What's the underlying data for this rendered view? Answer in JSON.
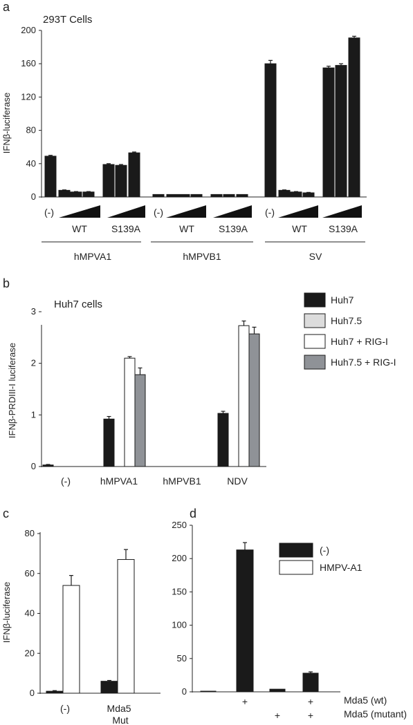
{
  "chart_data": [
    {
      "panel": "a",
      "type": "bar",
      "title": "293T Cells",
      "ylabel": "IFNβ-luciferase",
      "ylim": [
        0,
        200
      ],
      "yticks": [
        "0",
        "40",
        "80",
        "120",
        "160",
        "200"
      ],
      "groups": [
        "hMPVA1",
        "hMPVB1",
        "SV"
      ],
      "sublabels": [
        "(-)",
        "WT",
        "S139A"
      ],
      "values": [
        [
          49,
          8,
          6,
          6,
          39,
          38,
          53
        ],
        [
          3,
          3,
          3,
          3,
          3,
          3,
          3
        ],
        [
          160,
          8,
          6,
          5,
          155,
          158,
          191
        ]
      ],
      "errors": [
        [
          1,
          0.5,
          0.5,
          0.5,
          1,
          1,
          1
        ],
        [
          0,
          0,
          0,
          0,
          0,
          0,
          0
        ],
        [
          4,
          0.5,
          0.5,
          0.5,
          2,
          2,
          2
        ]
      ],
      "bar_color": "#1a1a1a"
    },
    {
      "panel": "b",
      "type": "bar",
      "title": "Huh7 cells",
      "ylabel": "IFNβ-PRDIII-I luciferase",
      "ylim": [
        0,
        3
      ],
      "yticks": [
        "0",
        "1",
        "2",
        "3"
      ],
      "categories": [
        "(-)",
        "hMPVA1",
        "hMPVB1",
        "NDV"
      ],
      "series": [
        {
          "name": "Huh7",
          "color": "#1a1a1a",
          "values": [
            0.03,
            0.92,
            0,
            1.03
          ],
          "errors": [
            0.01,
            0.05,
            0,
            0.04
          ]
        },
        {
          "name": "Huh7.5",
          "color": "#dcdcdc",
          "values": [
            0,
            0,
            0,
            0
          ],
          "errors": [
            0,
            0,
            0,
            0
          ]
        },
        {
          "name": "Huh7 + RIG-I",
          "color": "#ffffff",
          "values": [
            0,
            2.1,
            0,
            2.73
          ],
          "errors": [
            0,
            0.03,
            0,
            0.09
          ]
        },
        {
          "name": "Huh7.5 + RIG-I",
          "color": "#8f9297",
          "values": [
            0,
            1.78,
            0,
            2.57
          ],
          "errors": [
            0,
            0.13,
            0,
            0.13
          ]
        }
      ]
    },
    {
      "panel": "c",
      "type": "bar",
      "ylabel": "IFNβ-luciferase",
      "ylim": [
        0,
        80
      ],
      "yticks": [
        "0",
        "20",
        "40",
        "60",
        "80"
      ],
      "categories": [
        "(-)",
        "Mda5\nMut"
      ],
      "series": [
        {
          "color": "#1a1a1a",
          "values": [
            1,
            6
          ],
          "errors": [
            0.3,
            0.4
          ]
        },
        {
          "color": "#ffffff",
          "values": [
            54,
            67
          ],
          "errors": [
            5,
            5
          ]
        }
      ]
    },
    {
      "panel": "d",
      "type": "bar",
      "ylim": [
        0,
        250
      ],
      "yticks": [
        "0",
        "50",
        "100",
        "150",
        "200",
        "250"
      ],
      "row_labels": [
        "Mda5 (wt)",
        "Mda5 (mutant)"
      ],
      "conditions": [
        {
          "wt": "",
          "mutant": ""
        },
        {
          "wt": "+",
          "mutant": ""
        },
        {
          "wt": "",
          "mutant": "+"
        },
        {
          "wt": "+",
          "mutant": "+"
        }
      ],
      "series": [
        {
          "name": "(-)",
          "color": "#1a1a1a",
          "values": [
            1,
            0,
            4,
            0
          ],
          "errors": [
            0,
            0,
            0,
            0
          ]
        },
        {
          "name": "(-)",
          "color": "#1a1a1a",
          "values": [
            0,
            213,
            0,
            28
          ],
          "errors": [
            0,
            11,
            0,
            2
          ]
        }
      ],
      "legend": [
        {
          "name": "(-)",
          "color": "#1a1a1a"
        },
        {
          "name": "HMPV-A1",
          "color": "#ffffff"
        }
      ]
    }
  ]
}
